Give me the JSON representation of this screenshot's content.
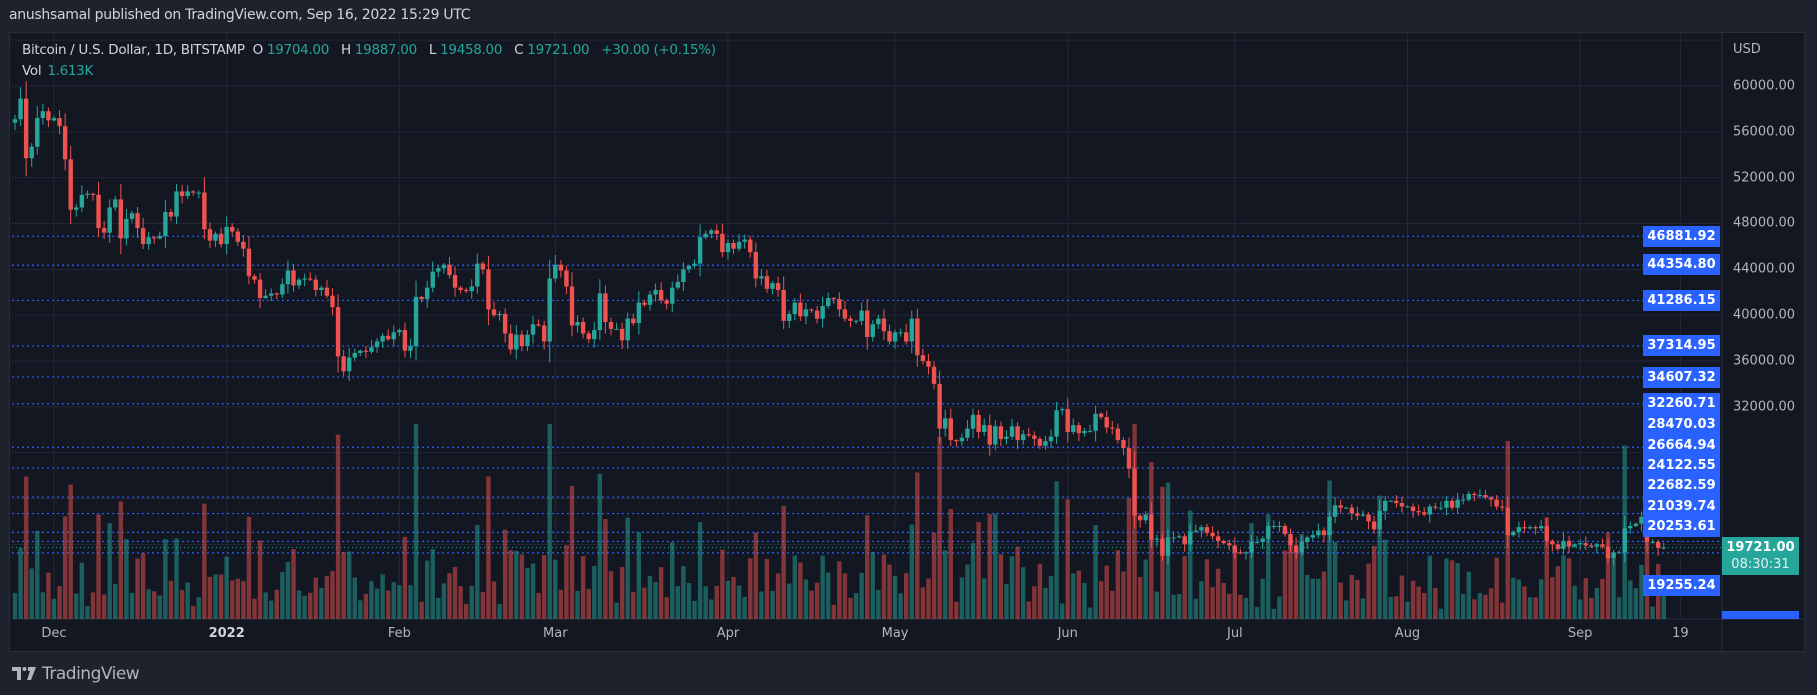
{
  "header": {
    "published": "anushsamal published on TradingView.com, Sep 16, 2022 15:29 UTC"
  },
  "legend": {
    "symbol": "Bitcoin / U.S. Dollar, 1D, BITSTAMP",
    "o_label": "O",
    "o": "19704.00",
    "h_label": "H",
    "h": "19887.00",
    "l_label": "L",
    "l": "19458.00",
    "c_label": "C",
    "c": "19721.00",
    "change": "+30.00 (+0.15%)",
    "vol_label": "Vol",
    "vol": "1.613K"
  },
  "price_axis": {
    "currency": "USD",
    "ticks": [
      "60000.00",
      "56000.00",
      "52000.00",
      "48000.00",
      "44000.00",
      "40000.00",
      "36000.00",
      "32000.00"
    ],
    "levels": [
      "46881.92",
      "44354.80",
      "41286.15",
      "37314.95",
      "34607.32",
      "32260.71",
      "28470.03",
      "26664.94",
      "24122.55",
      "22682.59",
      "21039.74",
      "20253.61",
      "19255.24"
    ],
    "current_price": "19721.00",
    "countdown": "08:30:31"
  },
  "footer": {
    "brand": "TradingView"
  },
  "colors": {
    "up": "#26a69a",
    "down": "#ef5350",
    "level": "#2962ff",
    "bg": "#131722"
  },
  "chart_data": {
    "type": "candlestick",
    "title": "Bitcoin / U.S. Dollar, 1D, BITSTAMP",
    "start_date": "2021-11-24",
    "ylim": [
      17000,
      64000
    ],
    "x_ticks": [
      {
        "label": "Dec",
        "day": 7
      },
      {
        "label": "2022",
        "day": 38,
        "bold": true
      },
      {
        "label": "Feb",
        "day": 69
      },
      {
        "label": "Mar",
        "day": 97
      },
      {
        "label": "Apr",
        "day": 128
      },
      {
        "label": "May",
        "day": 158
      },
      {
        "label": "Jun",
        "day": 189
      },
      {
        "label": "Jul",
        "day": 219
      },
      {
        "label": "Aug",
        "day": 250
      },
      {
        "label": "Sep",
        "day": 281
      },
      {
        "label": "19",
        "day": 299
      }
    ],
    "close": [
      57100,
      58900,
      53700,
      54700,
      57200,
      57800,
      57000,
      57200,
      56500,
      53600,
      49200,
      49400,
      50500,
      50600,
      50500,
      47600,
      47200,
      49400,
      50100,
      46700,
      48400,
      48900,
      47600,
      46200,
      46800,
      46700,
      46900,
      49000,
      48600,
      50800,
      50400,
      50800,
      50700,
      50700,
      47500,
      46500,
      47100,
      46200,
      47700,
      47300,
      46400,
      45800,
      43400,
      43100,
      41500,
      41700,
      41900,
      41800,
      42700,
      43900,
      42600,
      43100,
      43200,
      43100,
      42200,
      42400,
      41700,
      40700,
      36400,
      35100,
      36300,
      36700,
      36900,
      36800,
      37200,
      37700,
      38200,
      37900,
      38500,
      38700,
      36900,
      37300,
      41600,
      41400,
      42400,
      43800,
      44100,
      44400,
      43500,
      42400,
      42200,
      42100,
      42500,
      44500,
      44000,
      40500,
      40000,
      40100,
      38400,
      37000,
      38300,
      37300,
      38300,
      39200,
      39100,
      37700,
      43200,
      44400,
      43900,
      42500,
      39100,
      39400,
      38400,
      37900,
      38700,
      41900,
      39400,
      38800,
      38800,
      37800,
      39700,
      39300,
      41100,
      40900,
      41800,
      42200,
      41300,
      41000,
      42400,
      42900,
      44000,
      44300,
      44500,
      46800,
      47100,
      47400,
      47100,
      45500,
      46300,
      45800,
      46400,
      46600,
      45500,
      43200,
      43400,
      42300,
      42800,
      42200,
      39500,
      40100,
      41100,
      39900,
      40500,
      40400,
      39700,
      40800,
      41500,
      41400,
      40500,
      39700,
      39500,
      39500,
      40400,
      38100,
      39200,
      39700,
      38600,
      37700,
      38500,
      38500,
      37700,
      39700,
      36500,
      36000,
      35500,
      34000,
      30100,
      31000,
      29100,
      29000,
      29300,
      30100,
      31300,
      29800,
      30400,
      28700,
      30300,
      29200,
      29400,
      30300,
      29100,
      29600,
      29500,
      29200,
      28600,
      29000,
      29400,
      31700,
      31800,
      29800,
      30400,
      29700,
      29900,
      29900,
      31400,
      31100,
      30200,
      30100,
      29100,
      28400,
      26600,
      22500,
      22100,
      22600,
      20400,
      20500,
      19000,
      20600,
      20600,
      20700,
      20000,
      21100,
      21200,
      21500,
      21000,
      20700,
      20300,
      20100,
      19900,
      19300,
      19200,
      19300,
      20200,
      20200,
      20500,
      21600,
      21600,
      21600,
      20900,
      19900,
      19300,
      20200,
      20600,
      20800,
      21200,
      20800,
      22400,
      23400,
      23200,
      23200,
      22700,
      22500,
      22600,
      22000,
      21300,
      22900,
      23800,
      23800,
      23600,
      23300,
      23300,
      22900,
      22800,
      22600,
      23300,
      23200,
      23200,
      23800,
      23200,
      23900,
      23900,
      24400,
      24300,
      24300,
      24100,
      23900,
      23300,
      23200,
      20800,
      21100,
      21500,
      21400,
      21500,
      21400,
      21600,
      20300,
      20000,
      19600,
      20300,
      19800,
      20000,
      20100,
      19900,
      19800,
      20000,
      19800,
      18800,
      19300,
      19300,
      21400,
      21600,
      21800,
      22400,
      20200,
      20200,
      19691,
      19721
    ]
  }
}
